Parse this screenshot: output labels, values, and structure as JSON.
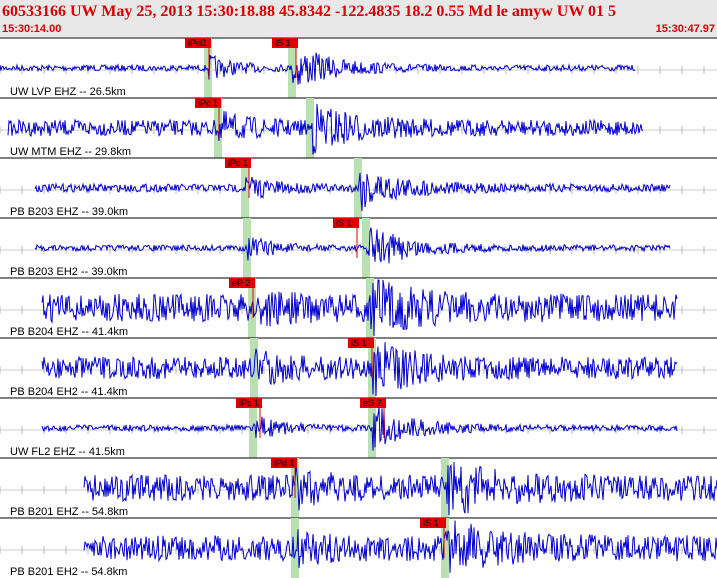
{
  "header": {
    "event": "60533166 UW May 25, 2013 15:30:18.88   45.8342 -122.4835 18.2 0.55 Md le amyw UW 01   5",
    "start_time": "15:30:14.00",
    "end_time": "15:30:47.97"
  },
  "traces": [
    {
      "label": "UW LVP EHZ -- 26.5km",
      "picks": [
        "iPd0",
        "iS 1"
      ]
    },
    {
      "label": "UW MTM EHZ -- 29.8km",
      "picks": [
        "iPc 1"
      ]
    },
    {
      "label": "PB B203 EHZ -- 39.0km",
      "picks": [
        "iPc 1"
      ]
    },
    {
      "label": "PB B203 EH2 -- 39.0km",
      "picks": [
        "iS 1"
      ]
    },
    {
      "label": "PB B204 EHZ -- 41.4km",
      "picks": [
        "eP 2"
      ]
    },
    {
      "label": "PB B204 EH2 -- 41.4km",
      "picks": [
        "iS 1"
      ]
    },
    {
      "label": "UW FL2 EHZ -- 41.5km",
      "picks": [
        "iPc 1",
        "eS 2"
      ]
    },
    {
      "label": "PB B201 EHZ -- 54.8km",
      "picks": [
        "iPd 1"
      ]
    },
    {
      "label": "PB B201 EH2 -- 54.8km",
      "picks": [
        "iS 1"
      ]
    }
  ]
}
